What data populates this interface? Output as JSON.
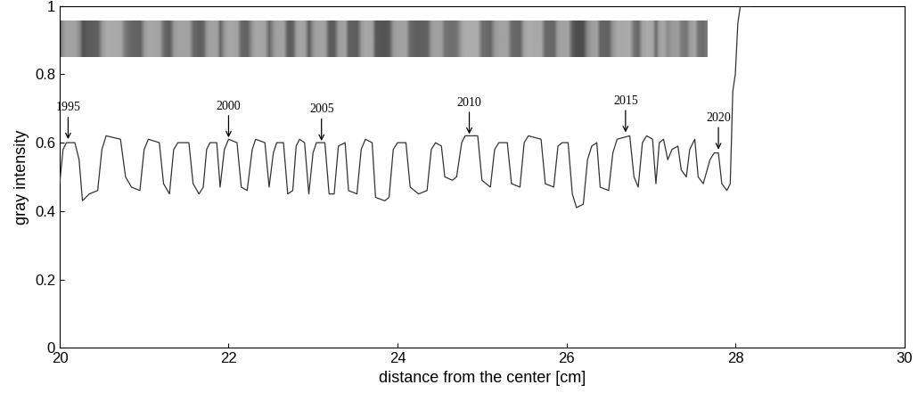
{
  "chart_data": {
    "type": "line",
    "x_label": "distance from the center [cm]",
    "y_label": "gray intensity",
    "color": "#333333",
    "xlim": [
      20,
      30
    ],
    "xticks": [
      20,
      22,
      24,
      26,
      28,
      30
    ],
    "ylim": [
      0,
      1
    ],
    "yticks": [
      0,
      0.2,
      0.4,
      0.6,
      0.8,
      1
    ],
    "grid": false,
    "x": [
      20.0,
      20.04,
      20.08,
      20.18,
      20.23,
      20.27,
      20.35,
      20.45,
      20.5,
      20.55,
      20.72,
      20.78,
      20.85,
      20.95,
      21.0,
      21.05,
      21.18,
      21.23,
      21.3,
      21.35,
      21.4,
      21.53,
      21.58,
      21.65,
      21.7,
      21.74,
      21.78,
      21.86,
      21.9,
      21.95,
      22.0,
      22.1,
      22.15,
      22.22,
      22.28,
      22.32,
      22.43,
      22.48,
      22.53,
      22.57,
      22.65,
      22.7,
      22.76,
      22.8,
      22.84,
      22.9,
      22.95,
      23.0,
      23.04,
      23.14,
      23.19,
      23.25,
      23.3,
      23.38,
      23.42,
      23.52,
      23.57,
      23.62,
      23.7,
      23.74,
      23.85,
      23.9,
      23.95,
      24.0,
      24.1,
      24.15,
      24.25,
      24.35,
      24.4,
      24.45,
      24.52,
      24.56,
      24.65,
      24.7,
      24.76,
      24.8,
      24.95,
      25.0,
      25.1,
      25.15,
      25.2,
      25.3,
      25.35,
      25.45,
      25.5,
      25.55,
      25.7,
      25.75,
      25.85,
      25.9,
      25.95,
      26.02,
      26.07,
      26.12,
      26.2,
      26.25,
      26.3,
      26.36,
      26.4,
      26.5,
      26.55,
      26.6,
      26.75,
      26.8,
      26.85,
      26.9,
      26.95,
      27.02,
      27.06,
      27.1,
      27.15,
      27.2,
      27.25,
      27.32,
      27.36,
      27.42,
      27.46,
      27.52,
      27.56,
      27.62,
      27.7,
      27.75,
      27.8,
      27.84,
      27.9,
      27.94,
      27.97,
      28.0,
      28.03,
      28.06,
      28.2
    ],
    "values": [
      0.48,
      0.58,
      0.6,
      0.6,
      0.55,
      0.43,
      0.45,
      0.46,
      0.58,
      0.62,
      0.61,
      0.5,
      0.47,
      0.46,
      0.58,
      0.61,
      0.6,
      0.48,
      0.45,
      0.58,
      0.6,
      0.6,
      0.48,
      0.45,
      0.47,
      0.58,
      0.6,
      0.6,
      0.47,
      0.58,
      0.61,
      0.6,
      0.47,
      0.46,
      0.58,
      0.61,
      0.6,
      0.47,
      0.57,
      0.6,
      0.6,
      0.45,
      0.46,
      0.59,
      0.61,
      0.6,
      0.45,
      0.57,
      0.6,
      0.6,
      0.45,
      0.45,
      0.59,
      0.6,
      0.46,
      0.45,
      0.58,
      0.61,
      0.6,
      0.44,
      0.43,
      0.44,
      0.58,
      0.6,
      0.6,
      0.47,
      0.45,
      0.46,
      0.58,
      0.6,
      0.59,
      0.5,
      0.49,
      0.5,
      0.6,
      0.62,
      0.62,
      0.49,
      0.47,
      0.58,
      0.6,
      0.6,
      0.48,
      0.47,
      0.6,
      0.62,
      0.61,
      0.48,
      0.47,
      0.59,
      0.6,
      0.6,
      0.45,
      0.41,
      0.42,
      0.55,
      0.59,
      0.6,
      0.47,
      0.46,
      0.57,
      0.61,
      0.62,
      0.5,
      0.47,
      0.6,
      0.62,
      0.61,
      0.48,
      0.6,
      0.61,
      0.55,
      0.58,
      0.59,
      0.52,
      0.5,
      0.58,
      0.61,
      0.5,
      0.48,
      0.55,
      0.57,
      0.57,
      0.48,
      0.46,
      0.48,
      0.75,
      0.8,
      0.95,
      1.0,
      1.0
    ],
    "annotations": [
      {
        "text": "1995",
        "x": 20.1,
        "y": 0.61
      },
      {
        "text": "2000",
        "x": 22.0,
        "y": 0.615
      },
      {
        "text": "2005",
        "x": 23.1,
        "y": 0.605
      },
      {
        "text": "2010",
        "x": 24.85,
        "y": 0.625
      },
      {
        "text": "2015",
        "x": 26.7,
        "y": 0.63
      },
      {
        "text": "2020",
        "x": 27.8,
        "y": 0.58
      }
    ]
  }
}
